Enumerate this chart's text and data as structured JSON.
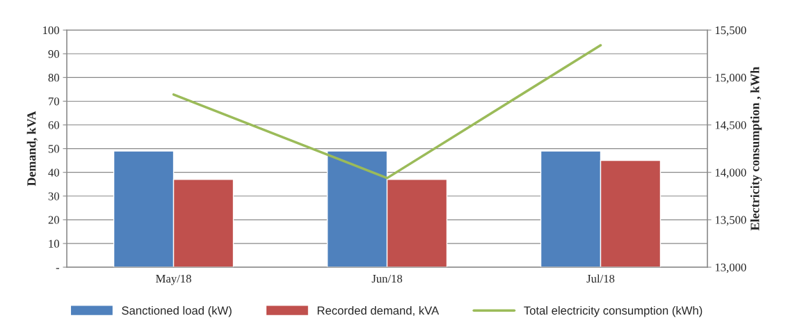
{
  "chart_data": {
    "type": "bar",
    "ylabel": "Demand, kVA",
    "y2label": "Electricity consumption , kWh",
    "categories": [
      "May/18",
      "Jun/18",
      "Jul/18"
    ],
    "series": [
      {
        "name": "Sanctioned load (kW)",
        "color": "#4f81bd",
        "values": [
          49,
          49,
          49
        ]
      },
      {
        "name": "Recorded demand, kVA",
        "color": "#c0504d",
        "values": [
          37,
          37,
          45
        ]
      },
      {
        "name": "Total electricity consumption (kWh)",
        "type": "line",
        "axis": "y2",
        "color": "#9bbb59",
        "values": [
          14820,
          13940,
          15340
        ]
      }
    ],
    "ylim": [
      0,
      100
    ],
    "yticks": [
      {
        "value": 0,
        "label": "-"
      },
      10,
      20,
      30,
      40,
      50,
      60,
      70,
      80,
      90,
      100
    ],
    "y2lim": [
      13000,
      15500
    ],
    "y2ticks": [
      {
        "value": 13000,
        "label": "13,000"
      },
      {
        "value": 13500,
        "label": "13,500"
      },
      {
        "value": 14000,
        "label": "14,000"
      },
      {
        "value": 14500,
        "label": "14,500"
      },
      {
        "value": 15000,
        "label": "15,000"
      },
      {
        "value": 15500,
        "label": "15,500"
      }
    ],
    "grid": "y",
    "legend": "bottom",
    "marker": "none",
    "line_style": "solid"
  }
}
